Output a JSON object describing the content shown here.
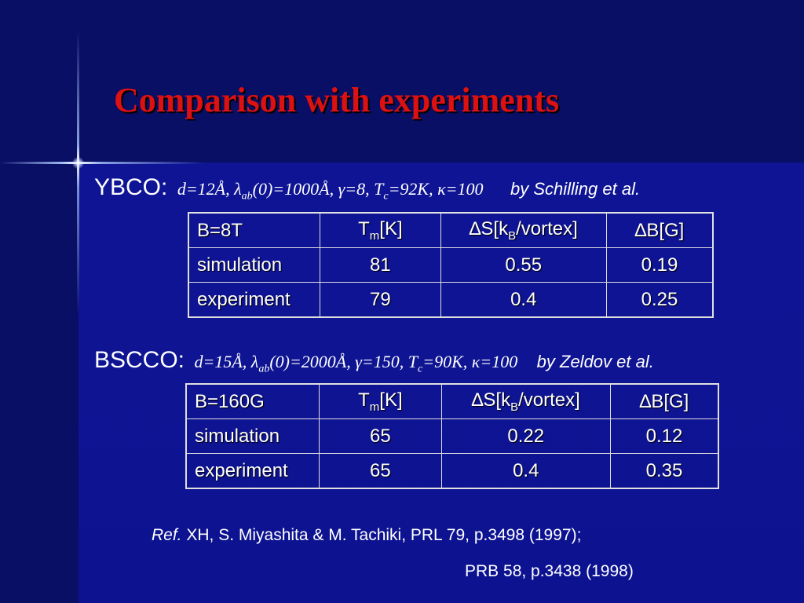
{
  "title": "Comparison with experiments",
  "ybco": {
    "name": "YBCO:",
    "params": {
      "d": "d=12Å,",
      "lambda": "λ",
      "lambda_sub": "ab",
      "lambda_val": "(0)=1000Å,",
      "gamma": "γ",
      "gamma_val": "=8,",
      "tc": "T",
      "tc_sub": "c",
      "tc_val": "=92K,",
      "kappa": "κ",
      "kappa_val": "=100"
    },
    "by": "by Schilling et al.",
    "table": {
      "header": {
        "c1": "B=8T",
        "tm": "T",
        "tm_sub": "m",
        "tm_unit": "[K]",
        "ds": "∆S[k",
        "ds_sub": "B",
        "ds_unit": "/vortex]",
        "db": "∆B[G]"
      },
      "rows": [
        {
          "label": "simulation",
          "tm": "81",
          "ds": "0.55",
          "db": "0.19"
        },
        {
          "label": "experiment",
          "tm": "79",
          "ds": "0.4",
          "db": "0.25"
        }
      ]
    }
  },
  "bscco": {
    "name": "BSCCO:",
    "params": {
      "d": "d=15Å,",
      "lambda": "λ",
      "lambda_sub": "ab",
      "lambda_val": "(0)=2000Å,",
      "gamma": "γ",
      "gamma_val": "=150,",
      "tc": "T",
      "tc_sub": "c",
      "tc_val": "=90K,",
      "kappa": "κ",
      "kappa_val": "=100"
    },
    "by": "by Zeldov et al.",
    "table": {
      "header": {
        "c1": "B=160G",
        "tm": "T",
        "tm_sub": "m",
        "tm_unit": "[K]",
        "ds": "∆S[k",
        "ds_sub": "B",
        "ds_unit": "/vortex]",
        "db": "∆B[G]"
      },
      "rows": [
        {
          "label": "simulation",
          "tm": "65",
          "ds": "0.22",
          "db": "0.12"
        },
        {
          "label": "experiment",
          "tm": "65",
          "ds": "0.4",
          "db": "0.35"
        }
      ]
    }
  },
  "reference": {
    "prefix": "Ref.",
    "line1": " XH, S. Miyashita & M. Tachiki, PRL 79, p.3498 (1997);",
    "line2": "PRB 58, p.3438 (1998)"
  }
}
